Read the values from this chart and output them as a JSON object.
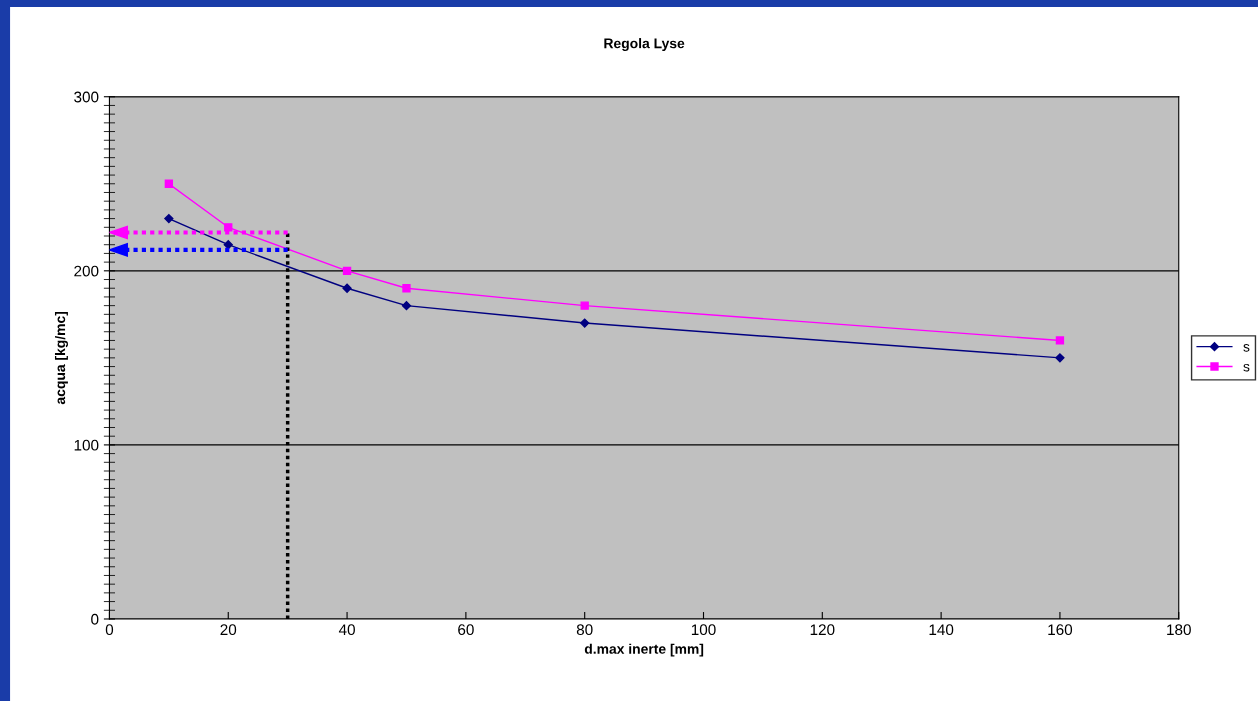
{
  "chart_data": {
    "type": "line",
    "title": "Regola Lyse",
    "xlabel": "d.max inerte [mm]",
    "ylabel": "acqua [kg/mc]",
    "x": [
      10,
      20,
      40,
      50,
      80,
      160
    ],
    "series": [
      {
        "name": "s",
        "color": "#000080",
        "values": [
          230,
          215,
          190,
          180,
          170,
          150
        ],
        "marker": "diamond"
      },
      {
        "name": "s",
        "color": "#ff00ff",
        "values": [
          250,
          225,
          200,
          190,
          180,
          160
        ],
        "marker": "square"
      }
    ],
    "ref_lines": [
      {
        "axis": "x",
        "value": 30,
        "color": "#000000",
        "line_style": "dotted"
      },
      {
        "axis": "y",
        "value": 222,
        "color": "#ff00ff",
        "line_style": "dotted"
      },
      {
        "axis": "y",
        "value": 212,
        "color": "#0000ff",
        "line_style": "dotted"
      }
    ],
    "xlim": [
      0,
      180
    ],
    "xticks": [
      0,
      20,
      40,
      60,
      80,
      100,
      120,
      140,
      160,
      180
    ],
    "ylim": [
      0,
      300
    ],
    "yticks": [
      0,
      100,
      200,
      300
    ],
    "grid": "y",
    "legend": "right"
  }
}
